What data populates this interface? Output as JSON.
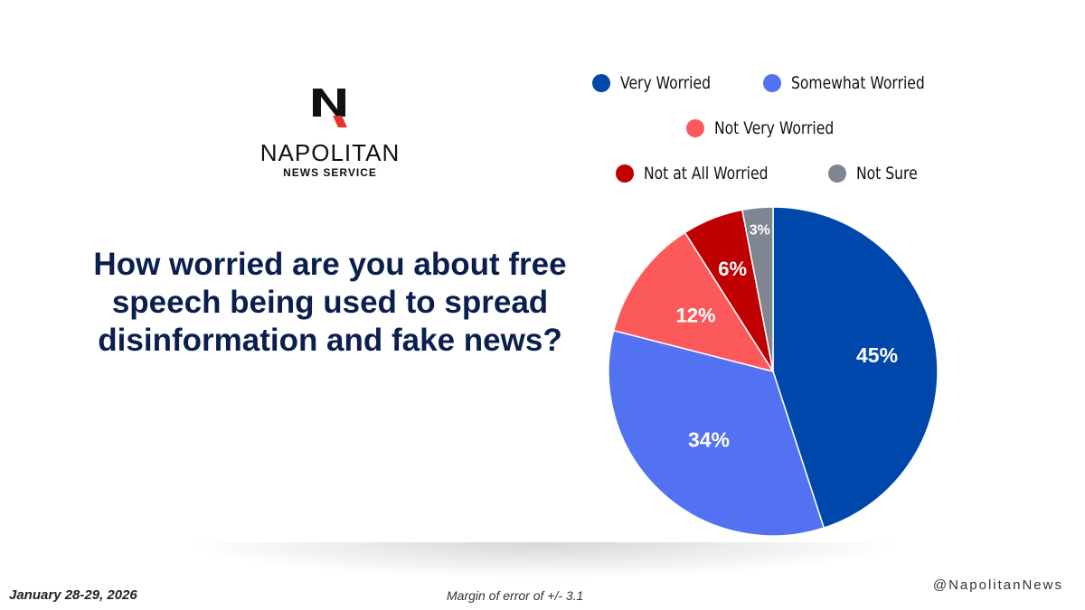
{
  "logo": {
    "name": "NAPOLITAN",
    "subtitle": "NEWS SERVICE"
  },
  "question": "How worried are you about free speech being used to spread disinformation and fake news?",
  "chart_data": {
    "type": "pie",
    "slices": [
      {
        "label": "Very Worried",
        "value": 45,
        "display": "45%",
        "color": "#0047ab"
      },
      {
        "label": "Somewhat Worried",
        "value": 34,
        "display": "34%",
        "color": "#5272f2"
      },
      {
        "label": "Not Very Worried",
        "value": 12,
        "display": "12%",
        "color": "#fc5a5a"
      },
      {
        "label": "Not at All Worried",
        "value": 6,
        "display": "6%",
        "color": "#c00000"
      },
      {
        "label": "Not Sure",
        "value": 3,
        "display": "3%",
        "color": "#7f8591"
      }
    ],
    "legend_position": "top",
    "start_angle": "12 o'clock, clockwise"
  },
  "footer": {
    "date": "January 28-29, 2026",
    "margin_of_error": "Margin of error of +/- 3.1",
    "handle": "@NapolitanNews"
  }
}
